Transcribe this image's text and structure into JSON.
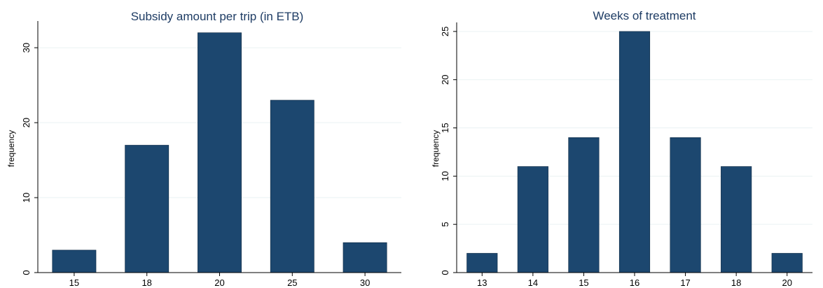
{
  "chart_data": [
    {
      "type": "bar",
      "title": "Subsidy amount per trip (in ETB)",
      "xlabel": "",
      "ylabel": "frequency",
      "categories": [
        "15",
        "18",
        "20",
        "25",
        "30"
      ],
      "values": [
        3,
        17,
        32,
        23,
        4
      ],
      "ylim": [
        0,
        33
      ],
      "yticks": [
        0,
        10,
        20,
        30
      ],
      "grid": true,
      "bar_color": "#1c476f"
    },
    {
      "type": "bar",
      "title": "Weeks of treatment",
      "xlabel": "",
      "ylabel": "frequency",
      "categories": [
        "13",
        "14",
        "15",
        "16",
        "17",
        "18",
        "20"
      ],
      "values": [
        2,
        11,
        14,
        25,
        14,
        11,
        2
      ],
      "ylim": [
        0,
        25.5
      ],
      "yticks": [
        0,
        5,
        10,
        15,
        20,
        25
      ],
      "grid": true,
      "bar_color": "#1c476f"
    }
  ]
}
